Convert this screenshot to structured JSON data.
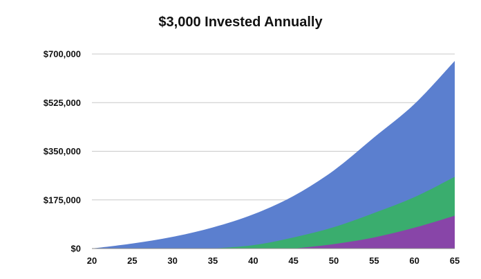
{
  "chart_data": {
    "type": "area",
    "title": "$3,000 Invested Annually",
    "xlabel": "",
    "ylabel": "",
    "x": [
      20,
      25,
      30,
      35,
      40,
      45,
      50,
      55,
      60,
      65
    ],
    "x_ticks": [
      "20",
      "25",
      "30",
      "35",
      "40",
      "45",
      "50",
      "55",
      "60",
      "65"
    ],
    "y_ticks": [
      "$0",
      "$175,000",
      "$350,000",
      "$525,000",
      "$700,000"
    ],
    "y_tick_values": [
      0,
      175000,
      350000,
      525000,
      700000
    ],
    "ylim": [
      0,
      700000
    ],
    "xlim": [
      20,
      65
    ],
    "grid": true,
    "stacked": false,
    "series": [
      {
        "color": "#5b7fcf",
        "values": [
          0,
          18000,
          42000,
          76000,
          123000,
          189000,
          281000,
          400000,
          520000,
          675000
        ]
      },
      {
        "color": "#3aad6e",
        "values": [
          null,
          null,
          null,
          0,
          12000,
          40000,
          77000,
          128000,
          185000,
          258000
        ]
      },
      {
        "color": "#8845a8",
        "values": [
          null,
          null,
          null,
          null,
          null,
          0,
          16000,
          40000,
          75000,
          118000
        ]
      }
    ]
  }
}
